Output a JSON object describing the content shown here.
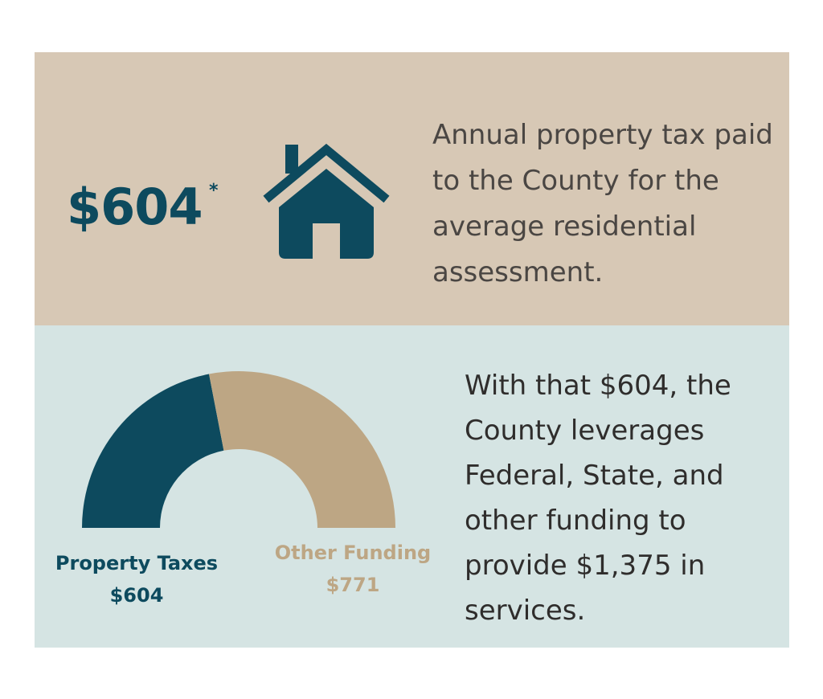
{
  "summary": {
    "amount": "$604",
    "asterisk": "*",
    "icon": "house-icon",
    "description": "Annual property tax paid to the County for the average residential assessment."
  },
  "leverage": {
    "description": "With that $604, the County leverages Federal, State, and other funding to provide $1,375 in services."
  },
  "chart_data": {
    "type": "pie",
    "style": "half-donut",
    "categories": [
      "Property Taxes",
      "Other Funding"
    ],
    "values": [
      604,
      771
    ],
    "value_labels": [
      "$604",
      "$771"
    ],
    "colors": [
      "#0d4a5e",
      "#bda684"
    ],
    "title": "",
    "legend": "below"
  },
  "colors": {
    "top_panel": "#d7c8b5",
    "bottom_panel": "#d5e4e3",
    "accent_dark": "#0d4a5e",
    "accent_tan": "#bda684"
  }
}
